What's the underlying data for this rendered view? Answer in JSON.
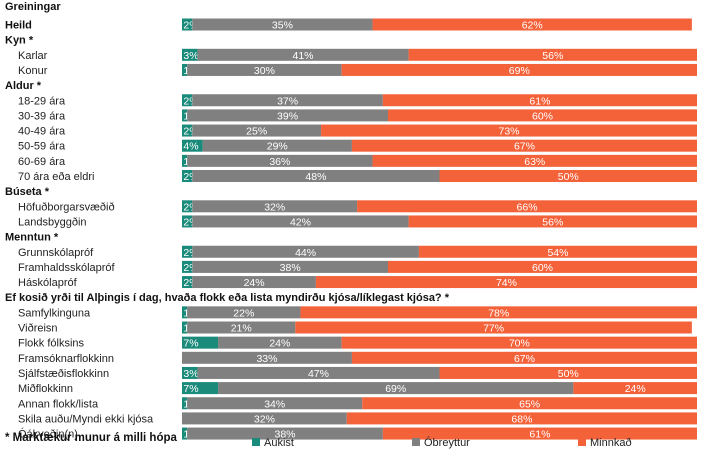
{
  "chart_data": {
    "type": "bar",
    "stacked": true,
    "orientation": "horizontal",
    "title": "Greiningar",
    "series": [
      {
        "name": "Aukist",
        "color": "#1a8a7a"
      },
      {
        "name": "Óbreyttur",
        "color": "#808080"
      },
      {
        "name": "Minnkað",
        "color": "#f4623a"
      }
    ],
    "rows": [
      {
        "label": "Heild",
        "kind": "group",
        "values": [
          2,
          35,
          62
        ]
      },
      {
        "label": "Kyn *",
        "kind": "header"
      },
      {
        "label": "Karlar",
        "kind": "item",
        "values": [
          3,
          41,
          56
        ]
      },
      {
        "label": "Konur",
        "kind": "item",
        "values": [
          1,
          30,
          69
        ]
      },
      {
        "label": "Aldur *",
        "kind": "header"
      },
      {
        "label": "18-29 ára",
        "kind": "item",
        "values": [
          2,
          37,
          61
        ]
      },
      {
        "label": "30-39 ára",
        "kind": "item",
        "values": [
          1,
          39,
          60
        ]
      },
      {
        "label": "40-49 ára",
        "kind": "item",
        "values": [
          2,
          25,
          73
        ]
      },
      {
        "label": "50-59 ára",
        "kind": "item",
        "values": [
          4,
          29,
          67
        ]
      },
      {
        "label": "60-69 ára",
        "kind": "item",
        "values": [
          1,
          36,
          63
        ]
      },
      {
        "label": "70 ára eða eldri",
        "kind": "item",
        "values": [
          2,
          48,
          50
        ]
      },
      {
        "label": "Búseta *",
        "kind": "header"
      },
      {
        "label": "Höfuðborgarsvæðið",
        "kind": "item",
        "values": [
          2,
          32,
          66
        ]
      },
      {
        "label": "Landsbyggðin",
        "kind": "item",
        "values": [
          2,
          42,
          56
        ]
      },
      {
        "label": "Menntun *",
        "kind": "header"
      },
      {
        "label": "Grunnskólapróf",
        "kind": "item",
        "values": [
          2,
          44,
          54
        ]
      },
      {
        "label": "Framhaldsskólapróf",
        "kind": "item",
        "values": [
          2,
          38,
          60
        ]
      },
      {
        "label": "Háskólapróf",
        "kind": "item",
        "values": [
          2,
          24,
          74
        ]
      },
      {
        "label": "Ef kosið yrði til Alþingis í dag, hvaða flokk eða lista myndirðu kjósa/líklegast kjósa? *",
        "kind": "header"
      },
      {
        "label": "Samfylkinguna",
        "kind": "item",
        "values": [
          1,
          22,
          78
        ]
      },
      {
        "label": "Viðreisn",
        "kind": "item",
        "values": [
          1,
          21,
          77
        ]
      },
      {
        "label": "Flokk fólksins",
        "kind": "item",
        "values": [
          7,
          24,
          70
        ]
      },
      {
        "label": "Framsóknarflokkinn",
        "kind": "item",
        "values": [
          0,
          33,
          67
        ]
      },
      {
        "label": "Sjálfstæðisflokkinn",
        "kind": "item",
        "values": [
          3,
          47,
          50
        ]
      },
      {
        "label": "Miðflokkinn",
        "kind": "item",
        "values": [
          7,
          69,
          24
        ]
      },
      {
        "label": "Annan flokk/lista",
        "kind": "item",
        "values": [
          1,
          34,
          65
        ]
      },
      {
        "label": "Skila auðu/Myndi ekki kjósa",
        "kind": "item",
        "values": [
          0,
          32,
          68
        ]
      },
      {
        "label": "Óákveðin(n)",
        "kind": "item",
        "values": [
          1,
          38,
          61
        ]
      }
    ],
    "footnote": "* Marktækur munur á milli hópa",
    "legend_position": "bottom",
    "xlim": [
      0,
      100
    ],
    "grid": false
  }
}
